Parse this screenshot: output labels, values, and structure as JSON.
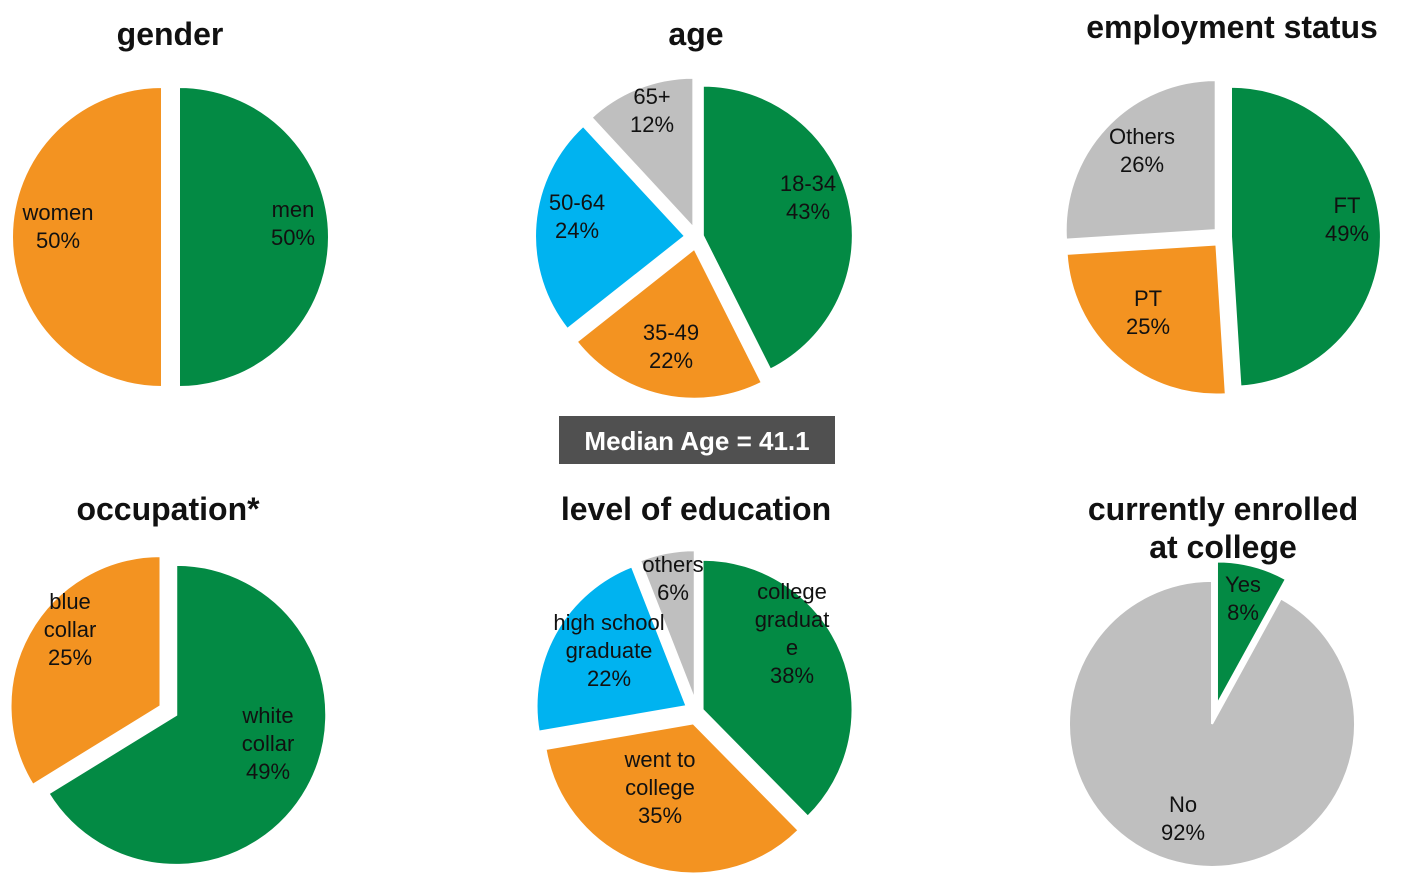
{
  "colors": {
    "green": "#038a44",
    "orange": "#f39321",
    "blue": "#00b3f0",
    "gray": "#bfbfbf",
    "median_bg": "#505050"
  },
  "median": {
    "label": "Median Age = 41.1"
  },
  "chart_data": [
    {
      "type": "pie",
      "title": [
        "gender"
      ],
      "slices": [
        {
          "label": [
            "men",
            "50%"
          ],
          "value": 50,
          "color": "green"
        },
        {
          "label": [
            "women",
            "50%"
          ],
          "value": 50,
          "color": "orange"
        }
      ]
    },
    {
      "type": "pie",
      "title": [
        "age"
      ],
      "slices": [
        {
          "label": [
            "18-34",
            "43%"
          ],
          "value": 43,
          "color": "green"
        },
        {
          "label": [
            "35-49",
            "22%"
          ],
          "value": 22,
          "color": "orange"
        },
        {
          "label": [
            "50-64",
            "24%"
          ],
          "value": 24,
          "color": "blue"
        },
        {
          "label": [
            "65+",
            "12%"
          ],
          "value": 12,
          "color": "gray"
        }
      ]
    },
    {
      "type": "pie",
      "title": [
        "employment status"
      ],
      "slices": [
        {
          "label": [
            "FT",
            "49%"
          ],
          "value": 49,
          "color": "green"
        },
        {
          "label": [
            "PT",
            "25%"
          ],
          "value": 25,
          "color": "orange"
        },
        {
          "label": [
            "Others",
            "26%"
          ],
          "value": 26,
          "color": "gray"
        }
      ]
    },
    {
      "type": "pie",
      "title": [
        "occupation*"
      ],
      "slices": [
        {
          "label": [
            "white",
            "collar",
            "49%"
          ],
          "value": 49,
          "color": "green"
        },
        {
          "label": [
            "blue",
            "collar",
            "25%"
          ],
          "value": 25,
          "color": "orange"
        }
      ]
    },
    {
      "type": "pie",
      "title": [
        "level of education"
      ],
      "slices": [
        {
          "label": [
            "college",
            "graduat",
            "e",
            "38%"
          ],
          "value": 38,
          "color": "green"
        },
        {
          "label": [
            "went to",
            "college",
            "35%"
          ],
          "value": 35,
          "color": "orange"
        },
        {
          "label": [
            "high school",
            "graduate",
            "22%"
          ],
          "value": 22,
          "color": "blue"
        },
        {
          "label": [
            "others",
            "6%"
          ],
          "value": 6,
          "color": "gray"
        }
      ]
    },
    {
      "type": "pie",
      "title": [
        "currently enrolled",
        "at college"
      ],
      "slices": [
        {
          "label": [
            "Yes",
            "8%"
          ],
          "value": 8,
          "color": "green"
        },
        {
          "label": [
            "No",
            "92%"
          ],
          "value": 92,
          "color": "gray"
        }
      ]
    }
  ]
}
